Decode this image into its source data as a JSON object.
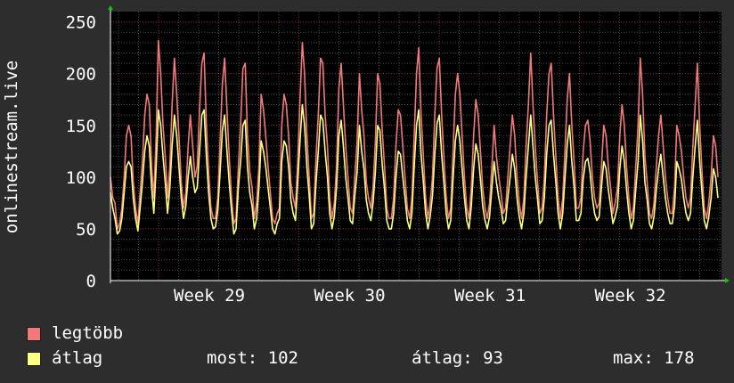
{
  "chart_data": {
    "type": "line",
    "ylabel": "onlinestream.live",
    "ylim": [
      0,
      260
    ],
    "yticks": [
      0,
      50,
      100,
      150,
      200,
      250
    ],
    "week_labels": [
      "Week 29",
      "Week 30",
      "Week 31",
      "Week 32"
    ],
    "grid": true,
    "colors": {
      "background": "#2d2d2d",
      "plot": "#000000",
      "grid": "#4a4a4a",
      "minor": "#8a2a2a",
      "axis": "#ffffff",
      "arrow": "#00d000"
    },
    "series": [
      {
        "name": "legtöbb",
        "color": "#f07a7a",
        "values": [
          100,
          80,
          75,
          50,
          55,
          70,
          100,
          140,
          150,
          140,
          95,
          70,
          55,
          85,
          115,
          160,
          180,
          170,
          110,
          80,
          140,
          232,
          200,
          150,
          120,
          80,
          110,
          170,
          215,
          180,
          140,
          95,
          70,
          85,
          130,
          160,
          130,
          100,
          110,
          165,
          210,
          220,
          150,
          105,
          70,
          60,
          60,
          80,
          135,
          190,
          215,
          165,
          120,
          80,
          55,
          60,
          110,
          150,
          205,
          210,
          140,
          105,
          90,
          60,
          75,
          110,
          180,
          165,
          140,
          110,
          85,
          60,
          55,
          65,
          70,
          150,
          180,
          170,
          140,
          95,
          80,
          70,
          115,
          175,
          230,
          200,
          140,
          100,
          60,
          65,
          120,
          160,
          215,
          210,
          160,
          130,
          80,
          60,
          75,
          110,
          185,
          210,
          170,
          130,
          100,
          70,
          65,
          100,
          135,
          200,
          165,
          140,
          95,
          80,
          70,
          90,
          135,
          200,
          190,
          145,
          110,
          70,
          60,
          60,
          80,
          130,
          165,
          160,
          130,
          100,
          70,
          60,
          80,
          140,
          200,
          225,
          160,
          120,
          80,
          60,
          75,
          100,
          160,
          205,
          215,
          160,
          120,
          80,
          60,
          70,
          125,
          180,
          200,
          180,
          140,
          100,
          70,
          60,
          90,
          140,
          175,
          160,
          125,
          90,
          70,
          60,
          75,
          110,
          150,
          120,
          100,
          85,
          65,
          70,
          100,
          130,
          160,
          140,
          100,
          75,
          60,
          80,
          130,
          170,
          220,
          170,
          130,
          95,
          65,
          70,
          100,
          160,
          200,
          210,
          160,
          120,
          80,
          60,
          80,
          125,
          175,
          200,
          150,
          115,
          70,
          70,
          80,
          125,
          150,
          155,
          135,
          100,
          80,
          70,
          75,
          110,
          150,
          140,
          110,
          90,
          65,
          75,
          90,
          140,
          170,
          150,
          110,
          80,
          60,
          70,
          110,
          150,
          215,
          180,
          120,
          95,
          65,
          60,
          75,
          110,
          140,
          160,
          130,
          100,
          80,
          65,
          65,
          90,
          150,
          140,
          125,
          100,
          80,
          70,
          80,
          130,
          170,
          210,
          150,
          105,
          70,
          60,
          75,
          100,
          140,
          130,
          100
        ]
      },
      {
        "name": "átlag",
        "color": "#ffff80",
        "values": [
          85,
          70,
          60,
          45,
          48,
          60,
          85,
          110,
          115,
          110,
          80,
          60,
          48,
          70,
          95,
          125,
          140,
          130,
          90,
          65,
          110,
          165,
          150,
          120,
          95,
          65,
          90,
          130,
          160,
          140,
          110,
          80,
          60,
          72,
          100,
          120,
          100,
          85,
          90,
          125,
          160,
          165,
          120,
          85,
          60,
          50,
          52,
          68,
          105,
          145,
          160,
          125,
          95,
          68,
          45,
          50,
          90,
          115,
          150,
          155,
          110,
          85,
          72,
          50,
          60,
          90,
          135,
          125,
          110,
          90,
          70,
          50,
          45,
          55,
          60,
          115,
          135,
          130,
          110,
          78,
          65,
          58,
          95,
          135,
          170,
          150,
          110,
          82,
          50,
          55,
          95,
          125,
          160,
          155,
          125,
          100,
          65,
          50,
          62,
          90,
          140,
          155,
          130,
          100,
          80,
          58,
          55,
          82,
          105,
          150,
          125,
          108,
          78,
          65,
          58,
          75,
          105,
          150,
          145,
          112,
          88,
          58,
          50,
          50,
          65,
          100,
          125,
          122,
          100,
          80,
          58,
          50,
          65,
          110,
          150,
          165,
          122,
          95,
          65,
          50,
          62,
          82,
          122,
          152,
          160,
          122,
          95,
          65,
          50,
          58,
          98,
          135,
          150,
          135,
          108,
          80,
          58,
          50,
          72,
          108,
          132,
          122,
          98,
          72,
          58,
          50,
          62,
          90,
          115,
          95,
          80,
          70,
          55,
          58,
          80,
          100,
          122,
          108,
          80,
          62,
          50,
          65,
          100,
          130,
          160,
          130,
          100,
          78,
          55,
          58,
          80,
          122,
          150,
          155,
          122,
          95,
          65,
          50,
          65,
          98,
          132,
          150,
          115,
          90,
          58,
          58,
          65,
          98,
          115,
          118,
          105,
          80,
          65,
          58,
          62,
          90,
          115,
          108,
          88,
          72,
          55,
          62,
          72,
          108,
          130,
          115,
          88,
          65,
          50,
          58,
          88,
          115,
          160,
          135,
          95,
          78,
          55,
          50,
          62,
          88,
          108,
          122,
          100,
          80,
          65,
          55,
          55,
          72,
          115,
          108,
          98,
          80,
          65,
          58,
          65,
          100,
          130,
          155,
          115,
          85,
          58,
          50,
          62,
          80,
          108,
          100,
          80
        ]
      }
    ]
  },
  "legend": {
    "items": [
      {
        "label": "legtöbb",
        "color": "#f07a7a"
      },
      {
        "label": "átlag",
        "color": "#ffff80"
      }
    ],
    "stats": {
      "most": "most: 102",
      "atlag": "átlag: 93",
      "max": "max: 178"
    }
  }
}
